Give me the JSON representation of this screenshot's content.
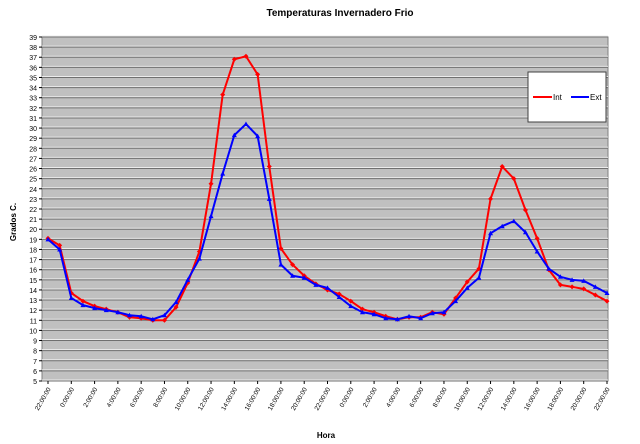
{
  "chart_data": {
    "type": "line",
    "title": "Temperaturas Invernadero Frio",
    "xlabel": "Hora",
    "ylabel": "Grados C.",
    "ylim": [
      5,
      39
    ],
    "yticks": [
      5,
      6,
      7,
      8,
      9,
      10,
      11,
      12,
      13,
      14,
      15,
      16,
      17,
      18,
      19,
      20,
      21,
      22,
      23,
      24,
      25,
      26,
      27,
      28,
      29,
      30,
      31,
      32,
      33,
      34,
      35,
      36,
      37,
      38,
      39
    ],
    "grid": true,
    "legend_position": "right",
    "x_tick_labels": [
      "22:00:00",
      "0:00:00",
      "2:00:00",
      "4:00:00",
      "6:00:00",
      "8:00:00",
      "10:00:00",
      "12:00:00",
      "14:00:00",
      "16:00:00",
      "18:00:00",
      "20:00:00",
      "22:00:00",
      "0:00:00",
      "2:00:00",
      "4:00:00",
      "6:00:00",
      "8:00:00",
      "10:00:00",
      "12:00:00",
      "14:00:00",
      "16:00:00",
      "18:00:00",
      "20:00:00",
      "22:00:00"
    ],
    "x": [
      "22:00",
      "23:00",
      "0:00",
      "1:00",
      "2:00",
      "3:00",
      "4:00",
      "5:00",
      "6:00",
      "7:00",
      "8:00",
      "9:00",
      "10:00",
      "11:00",
      "12:00",
      "13:00",
      "14:00",
      "15:00",
      "16:00",
      "17:00",
      "18:00",
      "19:00",
      "20:00",
      "21:00",
      "22:00",
      "23:00",
      "0:00",
      "1:00",
      "2:00",
      "3:00",
      "4:00",
      "5:00",
      "6:00",
      "7:00",
      "8:00",
      "9:00",
      "10:00",
      "11:00",
      "12:00",
      "13:00",
      "14:00",
      "15:00",
      "16:00",
      "17:00",
      "18:00",
      "19:00",
      "20:00",
      "21:00",
      "22:00"
    ],
    "series": [
      {
        "name": "Int",
        "color": "#ff0000",
        "marker": "diamond",
        "values": [
          19.1,
          18.4,
          13.7,
          12.9,
          12.4,
          12.1,
          11.8,
          11.3,
          11.2,
          11.0,
          11.0,
          12.3,
          14.7,
          17.8,
          24.5,
          33.3,
          36.8,
          37.1,
          35.3,
          26.2,
          18.1,
          16.5,
          15.4,
          14.6,
          14.0,
          13.6,
          12.9,
          12.1,
          11.8,
          11.4,
          11.1,
          11.3,
          11.3,
          11.8,
          11.6,
          13.2,
          14.8,
          16.1,
          23.0,
          26.2,
          25.0,
          21.9,
          19.1,
          16.0,
          14.5,
          14.3,
          14.1,
          13.5,
          12.9
        ]
      },
      {
        "name": "Ext",
        "color": "#0000ff",
        "marker": "triangle",
        "values": [
          19.0,
          18.0,
          13.2,
          12.5,
          12.2,
          12.0,
          11.8,
          11.5,
          11.4,
          11.1,
          11.5,
          12.8,
          15.0,
          17.1,
          21.3,
          25.5,
          29.3,
          30.4,
          29.2,
          23.0,
          16.5,
          15.4,
          15.2,
          14.5,
          14.2,
          13.3,
          12.4,
          11.8,
          11.6,
          11.2,
          11.1,
          11.4,
          11.2,
          11.7,
          11.8,
          12.9,
          14.2,
          15.2,
          19.6,
          20.3,
          20.8,
          19.7,
          17.8,
          16.1,
          15.3,
          15.0,
          14.9,
          14.3,
          13.7
        ]
      }
    ]
  }
}
